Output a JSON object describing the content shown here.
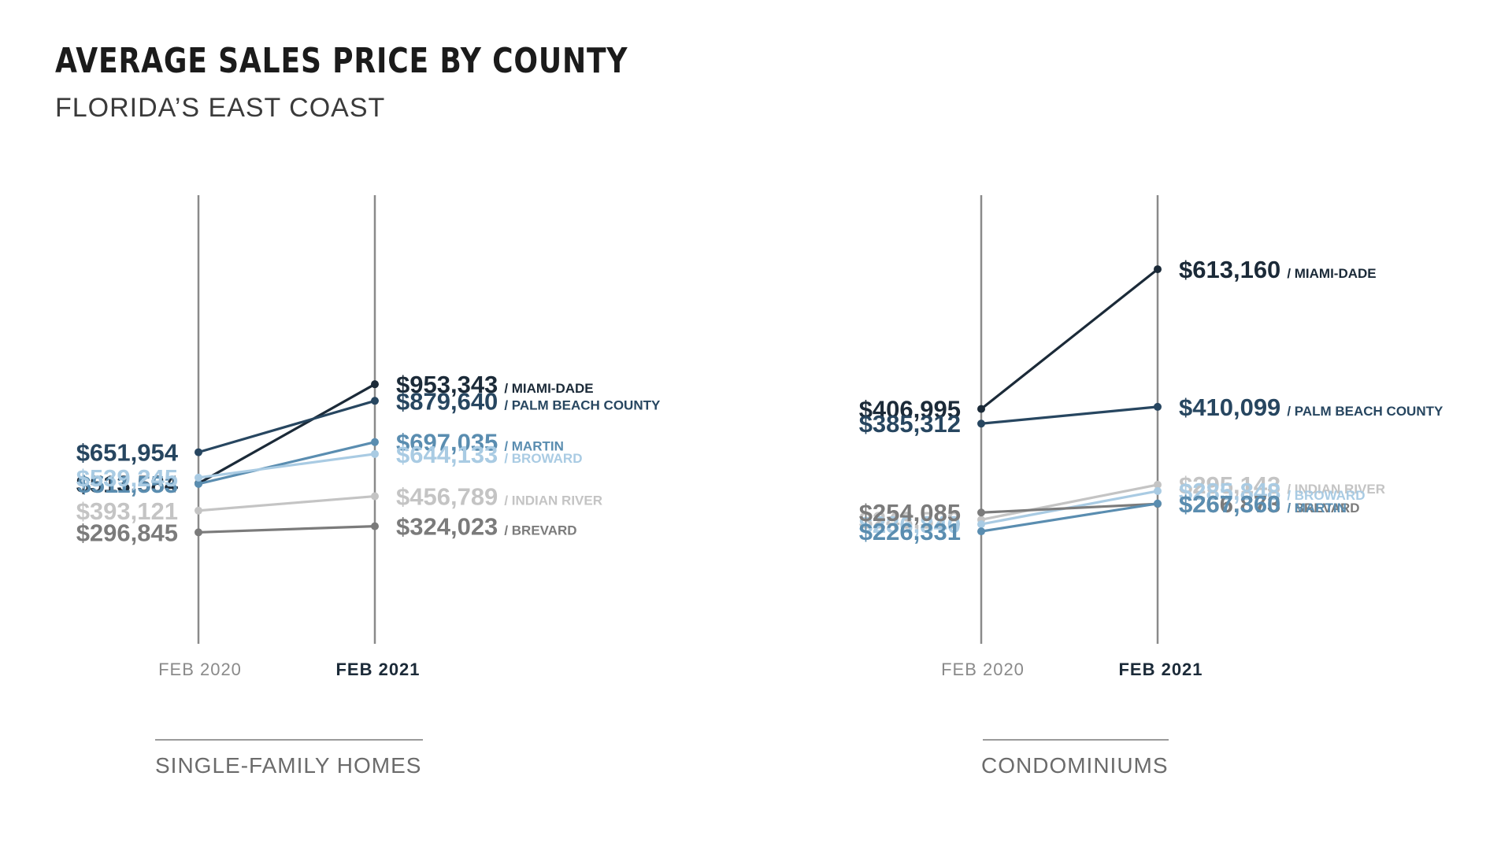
{
  "title": "AVERAGE SALES PRICE BY COUNTY",
  "subtitle": "FLORIDA’S EAST COAST",
  "chart_data": [
    {
      "type": "line",
      "panel_label": "SINGLE-FAMILY HOMES",
      "categories": [
        "FEB 2020",
        "FEB 2021"
      ],
      "ylim": [
        150000,
        1050000
      ],
      "series": [
        {
          "name": "MIAMI-DADE",
          "values": [
            513584,
            953343
          ],
          "labels": [
            "$513,584",
            "$953,343"
          ],
          "color": "#1b2a38"
        },
        {
          "name": "PALM BEACH COUNTY",
          "values": [
            651954,
            879640
          ],
          "labels": [
            "$651,954",
            "$879,640"
          ],
          "color": "#274660"
        },
        {
          "name": "MARTIN",
          "values": [
            511553,
            697035
          ],
          "labels": [
            "$511,553",
            "$697,035"
          ],
          "color": "#5a8db0"
        },
        {
          "name": "BROWARD",
          "values": [
            539245,
            644133
          ],
          "labels": [
            "$539,245",
            "$644,133"
          ],
          "color": "#a9cbe3"
        },
        {
          "name": "INDIAN RIVER",
          "values": [
            393121,
            456789
          ],
          "labels": [
            "$393,121",
            "$456,789"
          ],
          "color": "#c4c4c4"
        },
        {
          "name": "BREVARD",
          "values": [
            296845,
            324023
          ],
          "labels": [
            "$296,845",
            "$324,023"
          ],
          "color": "#7b7b7b"
        }
      ]
    },
    {
      "type": "line",
      "panel_label": "CONDOMINIUMS",
      "categories": [
        "FEB 2020",
        "FEB 2021"
      ],
      "ylim": [
        150000,
        750000
      ],
      "series": [
        {
          "name": "MIAMI-DADE",
          "values": [
            406995,
            613160
          ],
          "labels": [
            "$406,995",
            "$613,160"
          ],
          "color": "#1b2a38"
        },
        {
          "name": "PALM BEACH COUNTY",
          "values": [
            385312,
            410099
          ],
          "labels": [
            "$385,312",
            "$410,099"
          ],
          "color": "#274660"
        },
        {
          "name": "INDIAN RIVER",
          "values": [
            243528,
            295143
          ],
          "labels": [
            "$243,528",
            "$295,143"
          ],
          "color": "#c4c4c4"
        },
        {
          "name": "BROWARD",
          "values": [
            236840,
            285848
          ],
          "labels": [
            "$236,840",
            "$285,848"
          ],
          "color": "#a9cbe3"
        },
        {
          "name": "BREVARD",
          "values": [
            254085,
            266873
          ],
          "labels": [
            "$254,085",
            "$266,873"
          ],
          "color": "#7b7b7b"
        },
        {
          "name": "MARTIN",
          "values": [
            226331,
            267360
          ],
          "labels": [
            "$226,331",
            "$267,360"
          ],
          "color": "#5a8db0"
        }
      ]
    }
  ]
}
